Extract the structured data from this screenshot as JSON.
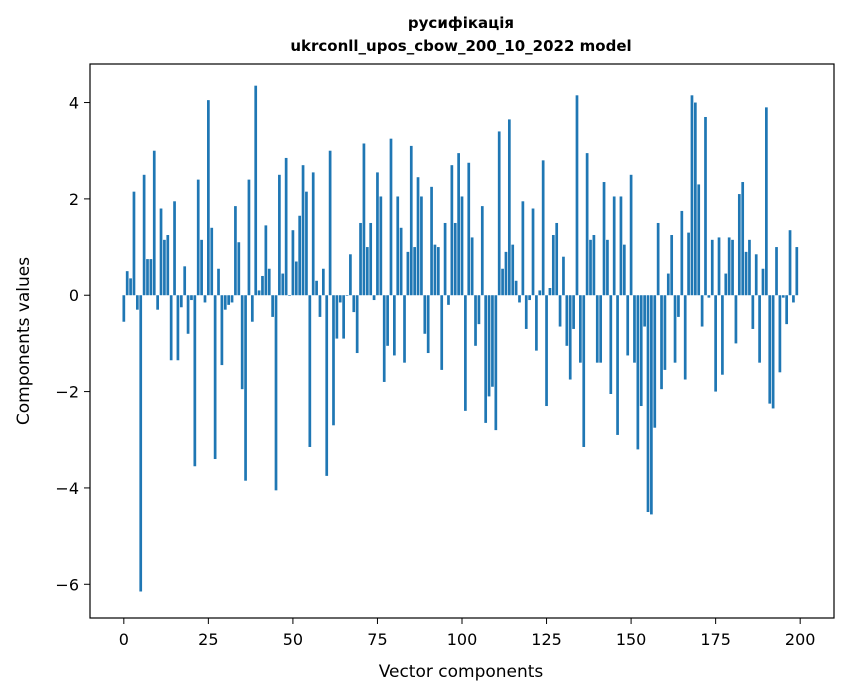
{
  "chart_data": {
    "type": "bar",
    "title": "русифікація",
    "subtitle": "ukrconll_upos_cbow_200_10_2022 model",
    "xlabel": "Vector components",
    "ylabel": "Components values",
    "xlim": [
      -10,
      210
    ],
    "ylim": [
      -6.7,
      4.8
    ],
    "xticks": [
      0,
      25,
      50,
      75,
      100,
      125,
      150,
      175,
      200
    ],
    "yticks": [
      -6,
      -4,
      -2,
      0,
      2,
      4
    ],
    "xtick_labels": [
      "0",
      "25",
      "50",
      "75",
      "100",
      "125",
      "150",
      "175",
      "200"
    ],
    "ytick_labels": [
      "−6",
      "−4",
      "−2",
      "0",
      "2",
      "4"
    ],
    "grid": false,
    "bar_color": "#1f77b4",
    "series": [
      {
        "values": [
          -0.55,
          0.5,
          0.35,
          2.15,
          -0.3,
          -6.15,
          2.5,
          0.75,
          0.75,
          3.0,
          -0.3,
          1.8,
          1.15,
          1.25,
          -1.35,
          1.95,
          -1.35,
          -0.25,
          0.6,
          -0.8,
          -0.1,
          -3.55,
          2.4,
          1.15,
          -0.15,
          4.05,
          1.4,
          -3.4,
          0.55,
          -1.45,
          -0.3,
          -0.2,
          -0.15,
          1.85,
          1.1,
          -1.95,
          -3.85,
          2.4,
          -0.55,
          4.35,
          0.1,
          0.4,
          1.45,
          0.55,
          -0.45,
          -4.05,
          2.5,
          0.45,
          2.85,
          0.0,
          1.35,
          0.7,
          1.65,
          2.7,
          2.15,
          -3.15,
          2.55,
          0.3,
          -0.45,
          0.55,
          -3.75,
          3.0,
          -2.7,
          -0.9,
          -0.15,
          -0.9,
          0.0,
          0.85,
          -0.35,
          -1.2,
          1.5,
          3.15,
          1.0,
          1.5,
          -0.1,
          2.55,
          2.05,
          -1.8,
          -1.05,
          3.25,
          -1.25,
          2.05,
          1.4,
          -1.4,
          0.9,
          3.1,
          1.0,
          2.45,
          2.05,
          -0.8,
          -1.2,
          2.25,
          1.05,
          1.0,
          -1.55,
          1.5,
          -0.2,
          2.7,
          1.5,
          2.95,
          2.05,
          -2.4,
          2.75,
          1.2,
          -1.05,
          -0.6,
          1.85,
          -2.65,
          -2.1,
          -1.9,
          -2.8,
          3.4,
          0.55,
          0.9,
          3.65,
          1.05,
          0.3,
          -0.15,
          1.95,
          -0.7,
          -0.1,
          1.8,
          -1.15,
          0.1,
          2.8,
          -2.3,
          0.15,
          1.25,
          1.5,
          -0.65,
          0.8,
          -1.05,
          -1.75,
          -0.7,
          4.15,
          -1.4,
          -3.15,
          2.95,
          1.15,
          1.25,
          -1.4,
          -1.4,
          2.35,
          1.15,
          -2.05,
          2.05,
          -2.9,
          2.05,
          1.05,
          -1.25,
          2.5,
          -1.4,
          -3.2,
          -2.3,
          -0.65,
          -4.5,
          -4.55,
          -2.75,
          1.5,
          -1.95,
          -1.55,
          0.45,
          1.25,
          -1.4,
          -0.45,
          1.75,
          -1.75,
          1.3,
          4.15,
          4.0,
          2.3,
          -0.65,
          3.7,
          -0.05,
          1.15,
          -2.0,
          1.2,
          -1.65,
          0.45,
          1.2,
          1.15,
          -1.0,
          2.1,
          2.35,
          0.9,
          1.15,
          -0.7,
          0.85,
          -1.4,
          0.55,
          3.9,
          -2.25,
          -2.35,
          1.0,
          -1.6,
          -0.05,
          -0.6,
          1.35,
          -0.15,
          1.0
        ]
      }
    ]
  }
}
